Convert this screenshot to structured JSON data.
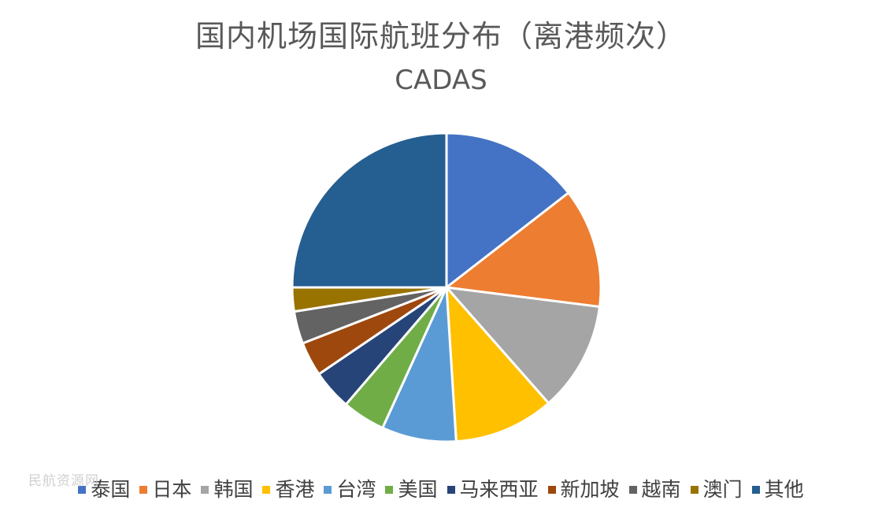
{
  "chart_data": {
    "type": "pie",
    "title": "国内机场国际航班分布（离港频次）",
    "subtitle": "CADAS",
    "legend_position": "bottom",
    "slices": [
      {
        "label": "泰国",
        "value": 14.5,
        "color": "#4472C4"
      },
      {
        "label": "日本",
        "value": 12.5,
        "color": "#ED7D31"
      },
      {
        "label": "韩国",
        "value": 11.5,
        "color": "#A5A5A5"
      },
      {
        "label": "香港",
        "value": 10.5,
        "color": "#FFC000"
      },
      {
        "label": "台湾",
        "value": 7.8,
        "color": "#5B9BD5"
      },
      {
        "label": "美国",
        "value": 4.5,
        "color": "#70AD47"
      },
      {
        "label": "马来西亚",
        "value": 4.2,
        "color": "#264478"
      },
      {
        "label": "新加坡",
        "value": 3.6,
        "color": "#9E480E"
      },
      {
        "label": "越南",
        "value": 3.4,
        "color": "#636363"
      },
      {
        "label": "澳门",
        "value": 2.5,
        "color": "#997300"
      },
      {
        "label": "其他",
        "value": 25.0,
        "color": "#255E91"
      }
    ]
  },
  "watermark_text": "民航资源网"
}
